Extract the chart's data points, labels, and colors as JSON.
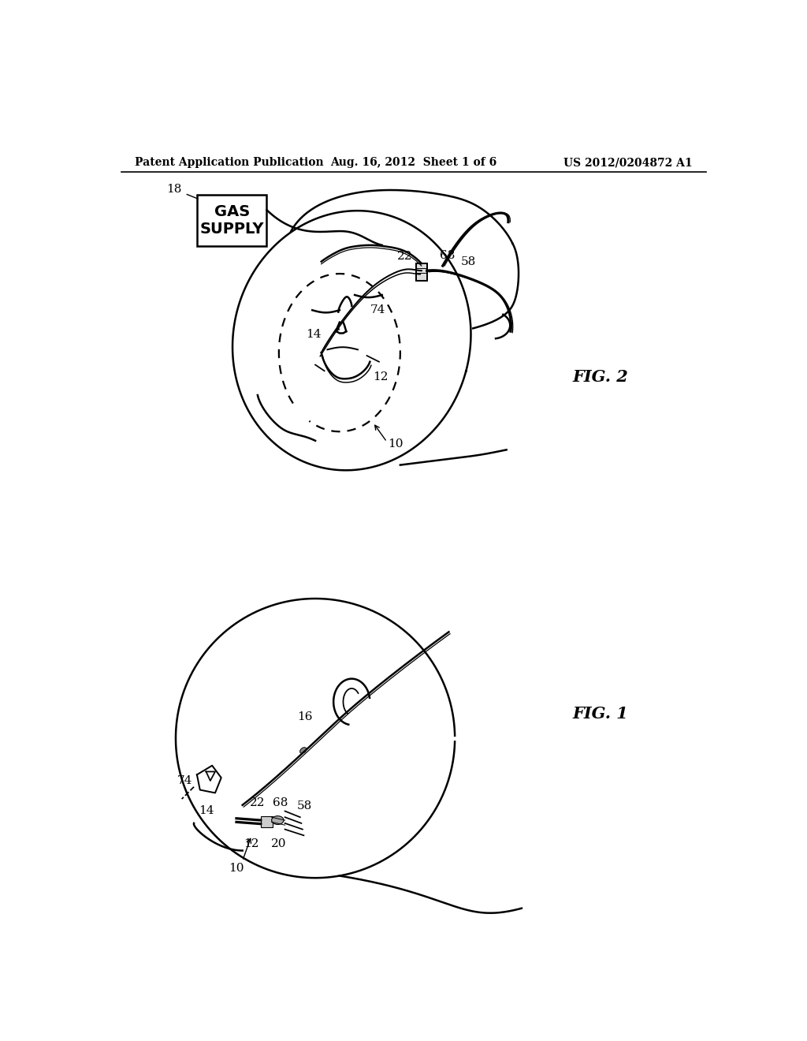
{
  "background_color": "#ffffff",
  "header_left": "Patent Application Publication",
  "header_center": "Aug. 16, 2012  Sheet 1 of 6",
  "header_right": "US 2012/0204872 A1",
  "fig2_label": "FIG. 2",
  "fig1_label": "FIG. 1",
  "gas_supply_text": "GAS\nSUPPLY",
  "lw": 1.8
}
